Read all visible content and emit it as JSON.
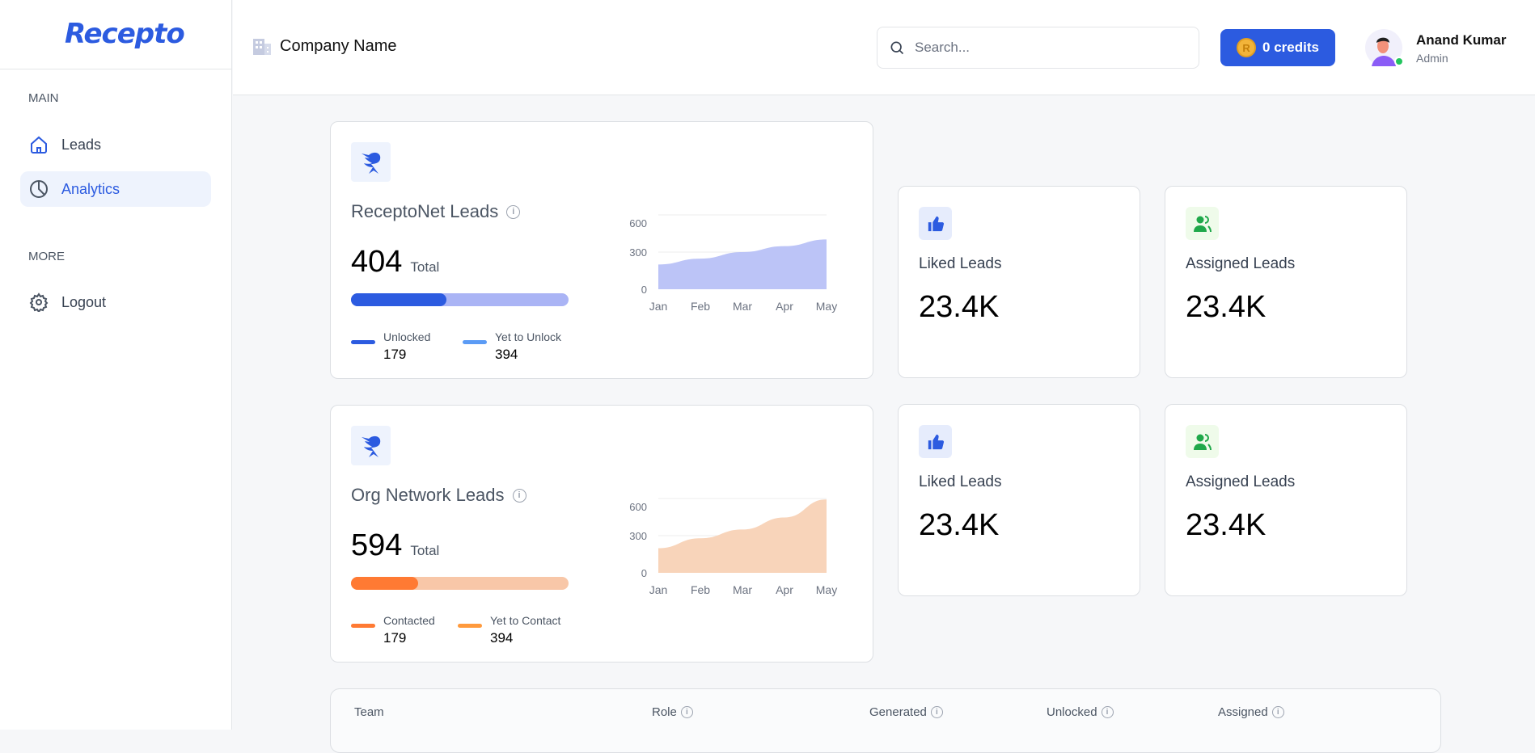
{
  "sidebar": {
    "logo": "Recepto",
    "sections": [
      {
        "title": "MAIN"
      },
      {
        "title": "MORE"
      }
    ],
    "items": [
      {
        "label": "Leads",
        "icon": "home-icon"
      },
      {
        "label": "Analytics",
        "icon": "pie-chart-icon",
        "active": true
      },
      {
        "label": "Logout",
        "icon": "gear-icon"
      }
    ]
  },
  "header": {
    "company": "Company Name",
    "search_placeholder": "Search...",
    "credits": "0 credits",
    "user": {
      "name": "Anand Kumar",
      "role": "Admin",
      "status": "online"
    }
  },
  "colors": {
    "primary": "#2c5be0",
    "unlocked": "#2c5be0",
    "yet_to_unlock": "#5b9bf5",
    "unlock_track": "#aab4f5",
    "contacted": "#ff7a33",
    "yet_to_contact": "#ff9a3d",
    "contact_track": "#f8c7a8",
    "area_blue": "#bcc4f7",
    "area_orange": "#f8d4ba"
  },
  "cards": [
    {
      "title": "ReceptoNet Leads",
      "total": "404",
      "total_label": "Total",
      "progress": 0.44,
      "legend": [
        {
          "label": "Unlocked",
          "value": "179"
        },
        {
          "label": "Yet to Unlock",
          "value": "394"
        }
      ]
    },
    {
      "title": "Org Network Leads",
      "total": "594",
      "total_label": "Total",
      "progress": 0.31,
      "legend": [
        {
          "label": "Contacted",
          "value": "179"
        },
        {
          "label": "Yet to Contact",
          "value": "394"
        }
      ]
    }
  ],
  "stats": [
    [
      {
        "label": "Liked Leads",
        "value": "23.4K",
        "icon": "thumbs-up-icon"
      },
      {
        "label": "Assigned Leads",
        "value": "23.4K",
        "icon": "users-icon"
      }
    ],
    [
      {
        "label": "Liked Leads",
        "value": "23.4K",
        "icon": "thumbs-up-icon"
      },
      {
        "label": "Assigned Leads",
        "value": "23.4K",
        "icon": "users-icon"
      }
    ]
  ],
  "chart_data": [
    {
      "type": "area",
      "categories": [
        "Jan",
        "Feb",
        "Mar",
        "Apr",
        "May"
      ],
      "values": [
        200,
        247,
        300,
        348,
        402
      ],
      "ylim": [
        0,
        600
      ],
      "yticks": [
        "0",
        "300",
        "600"
      ],
      "grid": true
    },
    {
      "type": "area",
      "categories": [
        "Jan",
        "Feb",
        "Mar",
        "Apr",
        "May"
      ],
      "values": [
        199,
        279,
        350,
        447,
        593
      ],
      "ylim": [
        0,
        600
      ],
      "yticks": [
        "0",
        "300",
        "600"
      ],
      "grid": true
    }
  ],
  "table": {
    "columns": [
      {
        "label": "Team"
      },
      {
        "label": "Role",
        "info": true
      },
      {
        "label": "Generated",
        "info": true
      },
      {
        "label": "Unlocked",
        "info": true
      },
      {
        "label": "Assigned",
        "info": true
      }
    ]
  }
}
